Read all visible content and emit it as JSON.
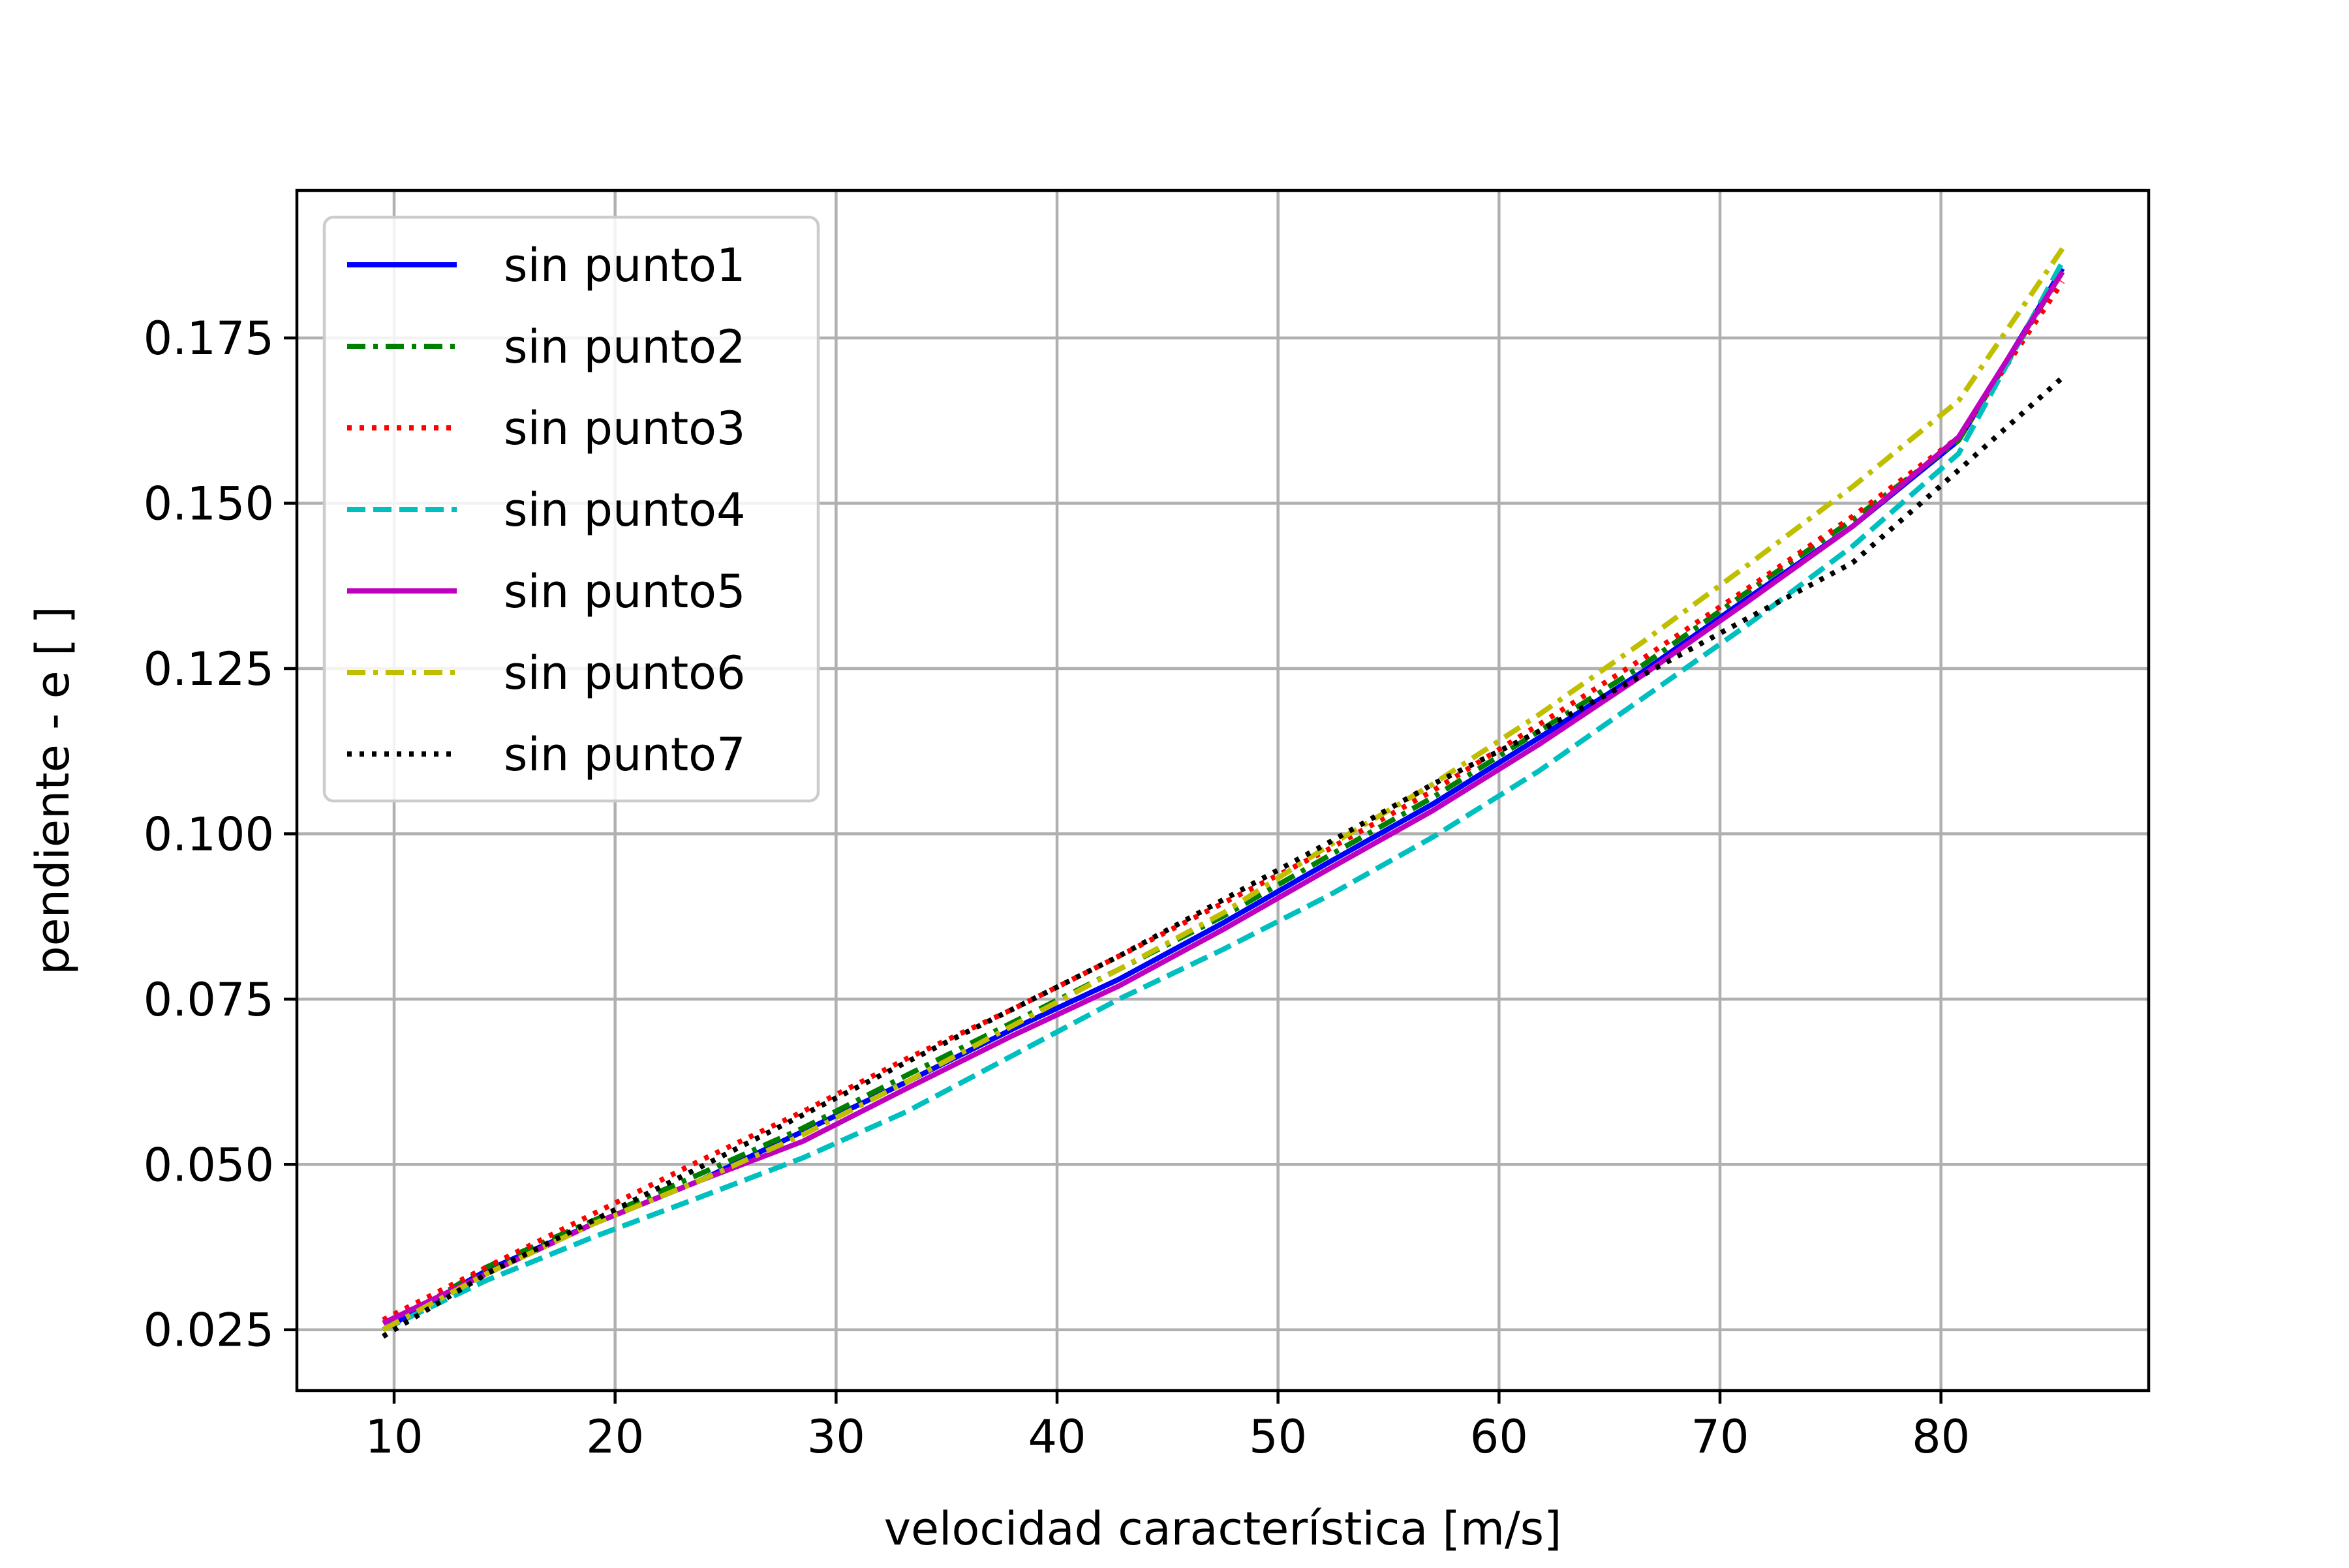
{
  "chart_data": {
    "type": "line",
    "title": "",
    "xlabel": "velocidad característica [m/s]",
    "ylabel": "pendiente - e [ ]",
    "xlim": [
      5.6,
      89.4
    ],
    "ylim": [
      0.0158,
      0.1973
    ],
    "x_ticks": [
      "10",
      "20",
      "30",
      "40",
      "50",
      "60",
      "70",
      "80"
    ],
    "x_tick_values": [
      10,
      20,
      30,
      40,
      50,
      60,
      70,
      80
    ],
    "y_ticks": [
      "0.025",
      "0.050",
      "0.075",
      "0.100",
      "0.125",
      "0.150",
      "0.175"
    ],
    "y_tick_values": [
      0.025,
      0.05,
      0.075,
      0.1,
      0.125,
      0.15,
      0.175
    ],
    "grid": true,
    "legend_position": "upper-left",
    "x": [
      9.5,
      14.2,
      19.0,
      23.8,
      28.5,
      33.2,
      38.0,
      42.8,
      47.5,
      52.2,
      57.0,
      61.8,
      66.5,
      71.2,
      76.0,
      80.8,
      85.5
    ],
    "series": [
      {
        "name": "sin punto1",
        "color": "#0000ff",
        "dash": "solid",
        "values": [
          0.025,
          0.034,
          0.041,
          0.0475,
          0.055,
          0.0625,
          0.0705,
          0.078,
          0.0865,
          0.0955,
          0.1045,
          0.1145,
          0.1245,
          0.1355,
          0.1465,
          0.1595,
          0.1855
        ]
      },
      {
        "name": "sin punto2",
        "color": "#008000",
        "dash": "dashdot",
        "values": [
          0.025,
          0.0345,
          0.0415,
          0.0485,
          0.0555,
          0.0635,
          0.0715,
          0.0795,
          0.0875,
          0.0965,
          0.1055,
          0.1155,
          0.1255,
          0.1365,
          0.1475,
          0.1595,
          0.185
        ]
      },
      {
        "name": "sin punto3",
        "color": "#ff0000",
        "dash": "dotted",
        "values": [
          0.0265,
          0.0345,
          0.0425,
          0.0505,
          0.058,
          0.066,
          0.0735,
          0.0815,
          0.0895,
          0.0975,
          0.1065,
          0.1165,
          0.1265,
          0.137,
          0.148,
          0.16,
          0.1835
        ]
      },
      {
        "name": "sin punto4",
        "color": "#00bfbf",
        "dash": "dashed",
        "values": [
          0.025,
          0.0325,
          0.039,
          0.045,
          0.051,
          0.058,
          0.0665,
          0.075,
          0.0825,
          0.0905,
          0.0995,
          0.1095,
          0.1205,
          0.1315,
          0.1435,
          0.1575,
          0.1865
        ]
      },
      {
        "name": "sin punto5",
        "color": "#bf00bf",
        "dash": "solid",
        "values": [
          0.026,
          0.0335,
          0.041,
          0.0475,
          0.0535,
          0.0615,
          0.0695,
          0.077,
          0.0855,
          0.0945,
          0.1035,
          0.1135,
          0.124,
          0.135,
          0.1465,
          0.16,
          0.185
        ]
      },
      {
        "name": "sin punto6",
        "color": "#bfbf00",
        "dash": "dashdot",
        "values": [
          0.025,
          0.0335,
          0.041,
          0.0475,
          0.0545,
          0.0625,
          0.071,
          0.0795,
          0.088,
          0.098,
          0.1075,
          0.118,
          0.129,
          0.1405,
          0.1525,
          0.1655,
          0.1885
        ]
      },
      {
        "name": "sin punto7",
        "color": "#000000",
        "dash": "dotted",
        "values": [
          0.024,
          0.0335,
          0.0415,
          0.0495,
          0.0575,
          0.0655,
          0.0735,
          0.0815,
          0.09,
          0.0985,
          0.1075,
          0.1155,
          0.124,
          0.1325,
          0.141,
          0.155,
          0.169
        ]
      }
    ]
  }
}
